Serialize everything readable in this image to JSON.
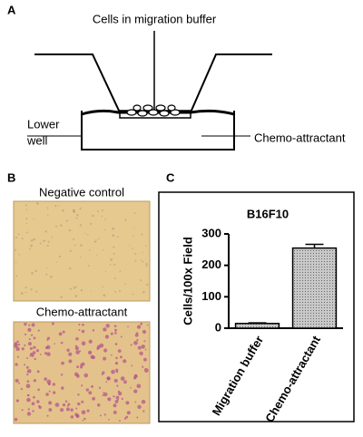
{
  "panels": {
    "a": {
      "label": "A",
      "top_label": "Cells in migration buffer",
      "lower_well": [
        "Lower",
        "well"
      ],
      "chemo": "Chemo-attractant"
    },
    "b": {
      "label": "B",
      "top_title": "Negative control",
      "bottom_title": "Chemo-attractant"
    },
    "c": {
      "label": "C"
    }
  },
  "chart_data": {
    "type": "bar",
    "title": "B16F10",
    "y_label": "Cells/100x Field",
    "categories": [
      "Migration buffer",
      "Chemo-attractant"
    ],
    "values": [
      15,
      255
    ],
    "errors": [
      2,
      12
    ],
    "color": "#b0b0b0",
    "ylim": [
      0,
      300
    ],
    "yticks": [
      0,
      100,
      200,
      300
    ]
  }
}
